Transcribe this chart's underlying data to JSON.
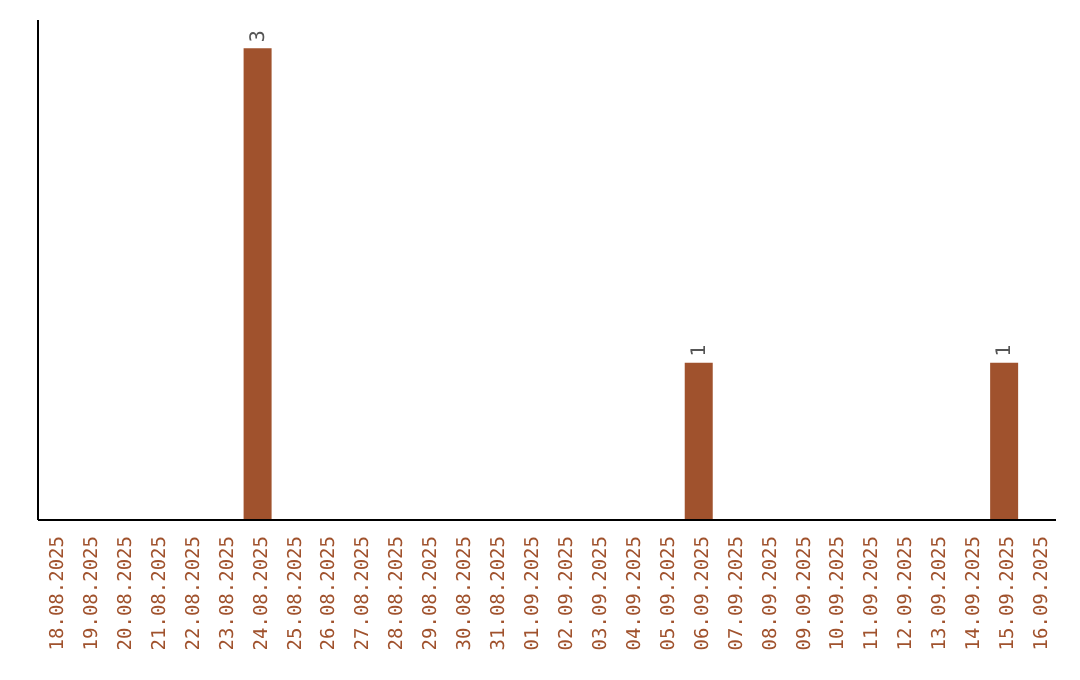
{
  "chart_data": {
    "type": "bar",
    "categories": [
      "18.08.2025",
      "19.08.2025",
      "20.08.2025",
      "21.08.2025",
      "22.08.2025",
      "23.08.2025",
      "24.08.2025",
      "25.08.2025",
      "26.08.2025",
      "27.08.2025",
      "28.08.2025",
      "29.08.2025",
      "30.08.2025",
      "31.08.2025",
      "01.09.2025",
      "02.09.2025",
      "03.09.2025",
      "04.09.2025",
      "05.09.2025",
      "06.09.2025",
      "07.09.2025",
      "08.09.2025",
      "09.09.2025",
      "10.09.2025",
      "11.09.2025",
      "12.09.2025",
      "13.09.2025",
      "14.09.2025",
      "15.09.2025",
      "16.09.2025"
    ],
    "values": [
      0,
      0,
      0,
      0,
      0,
      0,
      3,
      0,
      0,
      0,
      0,
      0,
      0,
      0,
      0,
      0,
      0,
      0,
      0,
      1,
      0,
      0,
      0,
      0,
      0,
      0,
      0,
      0,
      1,
      0
    ],
    "value_labels": [
      null,
      null,
      null,
      null,
      null,
      null,
      "3",
      null,
      null,
      null,
      null,
      null,
      null,
      null,
      null,
      null,
      null,
      null,
      null,
      "1",
      null,
      null,
      null,
      null,
      null,
      null,
      null,
      null,
      "1",
      null
    ],
    "color": "#a0522d",
    "tick_labels": "x"
  }
}
